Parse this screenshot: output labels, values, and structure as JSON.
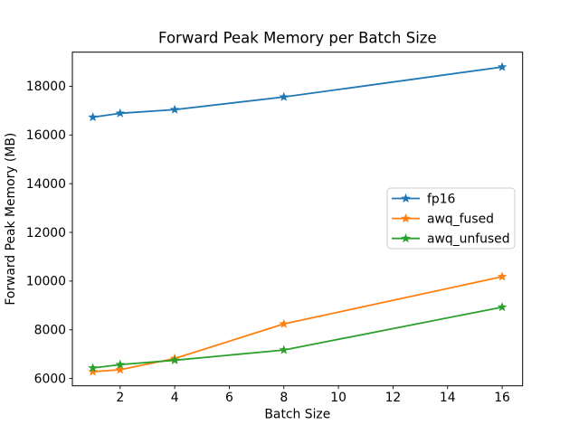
{
  "figure": {
    "background": "#ffffff"
  },
  "chart_data": {
    "type": "line",
    "title": "Forward Peak Memory per Batch Size",
    "xlabel": "Batch Size",
    "ylabel": "Forward Peak Memory (MB)",
    "x": [
      1,
      2,
      4,
      8,
      16
    ],
    "series": [
      {
        "name": "fp16",
        "color": "#1f77b4",
        "marker": "star",
        "values": [
          16730,
          16890,
          17040,
          17560,
          18790
        ]
      },
      {
        "name": "awq_fused",
        "color": "#ff7f0e",
        "marker": "star",
        "values": [
          6280,
          6360,
          6820,
          8240,
          10180
        ]
      },
      {
        "name": "awq_unfused",
        "color": "#2ca02c",
        "marker": "star",
        "values": [
          6430,
          6570,
          6750,
          7170,
          8930
        ]
      }
    ],
    "xlim": [
      0.25,
      16.75
    ],
    "ylim": [
      5700,
      19400
    ],
    "xticks": [
      2,
      4,
      6,
      8,
      10,
      12,
      14,
      16
    ],
    "yticks": [
      6000,
      8000,
      10000,
      12000,
      14000,
      16000,
      18000
    ],
    "grid": false,
    "legend": {
      "position": "right-center",
      "entries": [
        "fp16",
        "awq_fused",
        "awq_unfused"
      ],
      "border_color": "#cccccc",
      "background": "#ffffff"
    },
    "axis_color": "#000000",
    "text_color": "#000000"
  }
}
